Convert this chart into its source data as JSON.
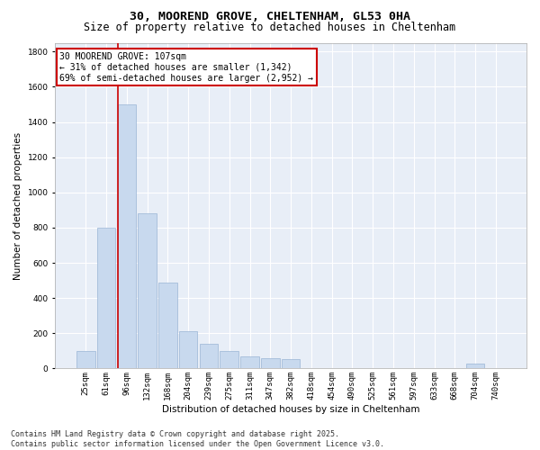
{
  "title": "30, MOOREND GROVE, CHELTENHAM, GL53 0HA",
  "subtitle": "Size of property relative to detached houses in Cheltenham",
  "xlabel": "Distribution of detached houses by size in Cheltenham",
  "ylabel": "Number of detached properties",
  "categories": [
    "25sqm",
    "61sqm",
    "96sqm",
    "132sqm",
    "168sqm",
    "204sqm",
    "239sqm",
    "275sqm",
    "311sqm",
    "347sqm",
    "382sqm",
    "418sqm",
    "454sqm",
    "490sqm",
    "525sqm",
    "561sqm",
    "597sqm",
    "633sqm",
    "668sqm",
    "704sqm",
    "740sqm"
  ],
  "values": [
    100,
    800,
    1500,
    880,
    490,
    210,
    140,
    100,
    70,
    60,
    55,
    0,
    0,
    0,
    0,
    0,
    0,
    0,
    0,
    30,
    0
  ],
  "bar_color": "#c8d9ee",
  "bar_edge_color": "#9ab5d5",
  "vline_x_index": 2,
  "vline_color": "#cc0000",
  "annotation_text": "30 MOOREND GROVE: 107sqm\n← 31% of detached houses are smaller (1,342)\n69% of semi-detached houses are larger (2,952) →",
  "annotation_box_color": "#ffffff",
  "annotation_box_edge": "#cc0000",
  "ylim": [
    0,
    1850
  ],
  "yticks": [
    0,
    200,
    400,
    600,
    800,
    1000,
    1200,
    1400,
    1600,
    1800
  ],
  "bg_color": "#e8eef7",
  "footer_text": "Contains HM Land Registry data © Crown copyright and database right 2025.\nContains public sector information licensed under the Open Government Licence v3.0.",
  "title_fontsize": 9.5,
  "subtitle_fontsize": 8.5,
  "axis_label_fontsize": 7.5,
  "tick_fontsize": 6.5,
  "annotation_fontsize": 7,
  "footer_fontsize": 6
}
